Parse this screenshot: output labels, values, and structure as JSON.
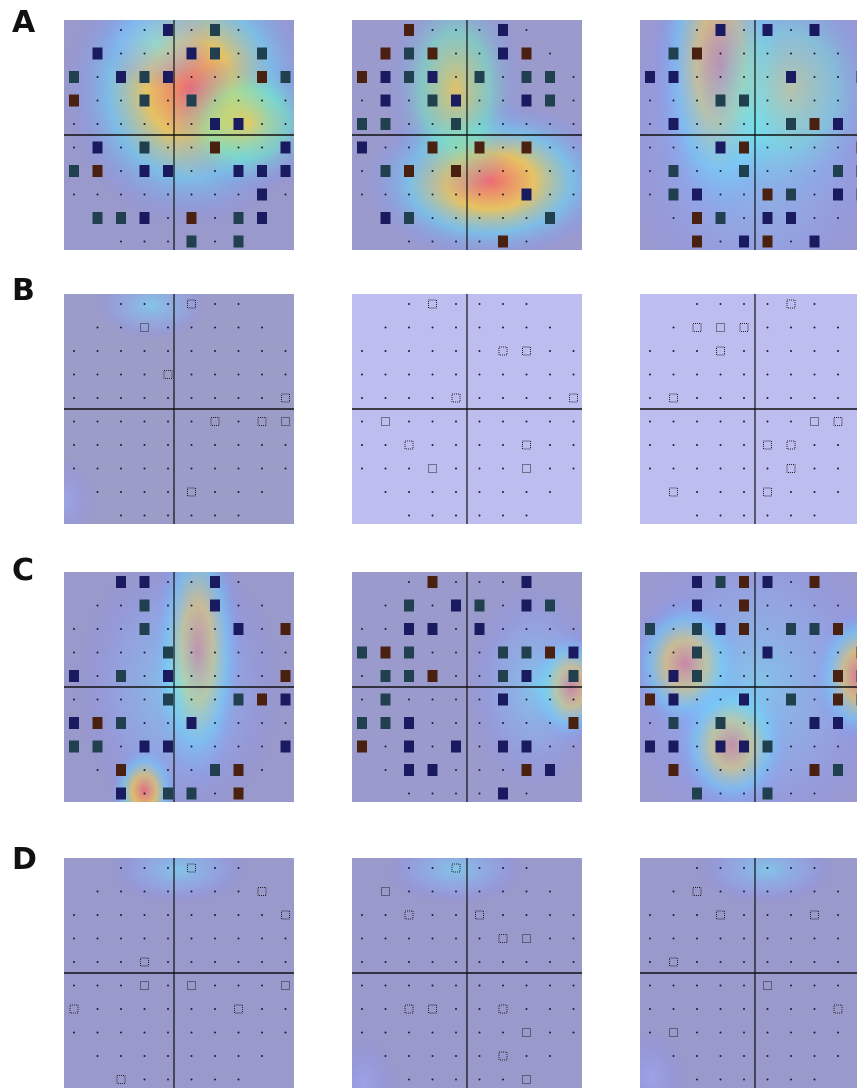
{
  "rows": [
    {
      "label": "A",
      "panels": [
        {
          "bg": "#9999cc",
          "heat": [
            [
              0.55,
              0.3,
              0.55,
              0.6,
              "hot"
            ],
            [
              0.8,
              0.45,
              0.35,
              0.3,
              "warm"
            ],
            [
              0.4,
              0.1,
              0.25,
              0.2,
              "cool"
            ]
          ]
        },
        {
          "bg": "#9a9acd",
          "heat": [
            [
              0.6,
              0.7,
              0.55,
              0.35,
              "hot"
            ],
            [
              0.45,
              0.3,
              0.3,
              0.5,
              "warm"
            ]
          ]
        },
        {
          "bg": "#9a9ad0",
          "heat": [
            [
              0.35,
              0.2,
              0.3,
              0.7,
              "hot"
            ],
            [
              0.65,
              0.3,
              0.4,
              0.5,
              "warm"
            ],
            [
              0.5,
              0.5,
              0.6,
              0.8,
              "cool"
            ]
          ]
        }
      ]
    },
    {
      "label": "B",
      "panels": [
        {
          "bg": "#9c9cc8",
          "heat": [
            [
              0.38,
              0.05,
              0.25,
              0.15,
              "cool"
            ],
            [
              0.0,
              0.9,
              0.15,
              0.2,
              "faint"
            ]
          ]
        },
        {
          "bg": "#bdbdf0",
          "heat": []
        },
        {
          "bg": "#bdbdf0",
          "heat": []
        }
      ]
    },
    {
      "label": "C",
      "panels": [
        {
          "bg": "#9999cc",
          "heat": [
            [
              0.58,
              0.35,
              0.2,
              0.6,
              "hot"
            ],
            [
              0.35,
              0.95,
              0.15,
              0.2,
              "hot"
            ],
            [
              0.5,
              0.5,
              0.45,
              0.6,
              "cool"
            ]
          ]
        },
        {
          "bg": "#9a9acd",
          "heat": [
            [
              0.95,
              0.5,
              0.18,
              0.25,
              "hot"
            ],
            [
              0.8,
              0.5,
              0.3,
              0.45,
              "cool"
            ]
          ]
        },
        {
          "bg": "#9a9ad0",
          "heat": [
            [
              0.2,
              0.4,
              0.25,
              0.3,
              "hot"
            ],
            [
              0.4,
              0.75,
              0.25,
              0.3,
              "hot"
            ],
            [
              0.95,
              0.45,
              0.2,
              0.3,
              "hot"
            ],
            [
              0.5,
              0.5,
              0.6,
              0.7,
              "cool"
            ]
          ]
        }
      ]
    },
    {
      "label": "D",
      "panels": [
        {
          "bg": "#9999cc",
          "heat": [
            [
              0.5,
              0.05,
              0.3,
              0.15,
              "cool"
            ]
          ]
        },
        {
          "bg": "#9999cc",
          "heat": [
            [
              0.45,
              0.05,
              0.3,
              0.15,
              "cool"
            ],
            [
              0.05,
              0.98,
              0.15,
              0.2,
              "faint"
            ]
          ]
        },
        {
          "bg": "#9999cc",
          "heat": [
            [
              0.55,
              0.05,
              0.3,
              0.15,
              "cool"
            ],
            [
              0.05,
              0.95,
              0.15,
              0.2,
              "faint"
            ]
          ]
        }
      ]
    }
  ]
}
